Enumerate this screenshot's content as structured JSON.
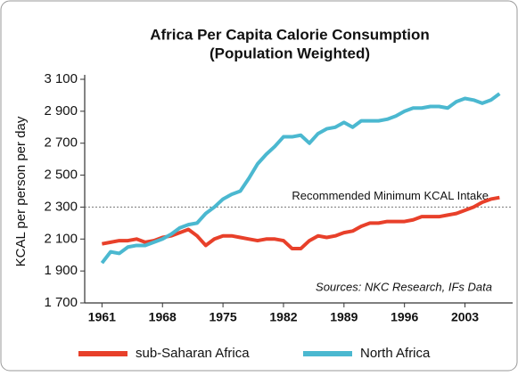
{
  "chart_data": {
    "type": "line",
    "title": [
      "Africa Per Capita Calorie Consumption",
      "(Population Weighted)"
    ],
    "y_label": "KCAL per person per day",
    "x": [
      1961,
      1962,
      1963,
      1964,
      1965,
      1966,
      1967,
      1968,
      1969,
      1970,
      1971,
      1972,
      1973,
      1974,
      1975,
      1976,
      1977,
      1978,
      1979,
      1980,
      1981,
      1982,
      1983,
      1984,
      1985,
      1986,
      1987,
      1988,
      1989,
      1990,
      1991,
      1992,
      1993,
      1994,
      1995,
      1996,
      1997,
      1998,
      1999,
      2000,
      2001,
      2002,
      2003,
      2004,
      2005,
      2006,
      2007
    ],
    "series": [
      {
        "name": "sub-Saharan Africa",
        "color": "#e8402a",
        "values": [
          2070,
          2080,
          2090,
          2090,
          2100,
          2080,
          2090,
          2110,
          2120,
          2140,
          2160,
          2120,
          2060,
          2100,
          2120,
          2120,
          2110,
          2100,
          2090,
          2100,
          2100,
          2090,
          2040,
          2040,
          2090,
          2120,
          2110,
          2120,
          2140,
          2150,
          2180,
          2200,
          2200,
          2210,
          2210,
          2210,
          2220,
          2240,
          2240,
          2240,
          2250,
          2260,
          2280,
          2300,
          2330,
          2350,
          2360
        ]
      },
      {
        "name": "North Africa",
        "color": "#4bb8d0",
        "values": [
          1950,
          2020,
          2010,
          2050,
          2060,
          2060,
          2080,
          2100,
          2130,
          2170,
          2190,
          2200,
          2260,
          2300,
          2350,
          2380,
          2400,
          2480,
          2570,
          2630,
          2680,
          2740,
          2740,
          2750,
          2700,
          2760,
          2790,
          2800,
          2830,
          2800,
          2840,
          2840,
          2840,
          2850,
          2870,
          2900,
          2920,
          2920,
          2930,
          2930,
          2920,
          2960,
          2980,
          2970,
          2950,
          2970,
          3010
        ]
      }
    ],
    "xlim": [
      1959,
      2008
    ],
    "xticks": [
      1961,
      1968,
      1975,
      1982,
      1989,
      1996,
      2003
    ],
    "ylim": [
      1700,
      3100
    ],
    "yticks": [
      {
        "value": 1700,
        "label": "1 700"
      },
      {
        "value": 1900,
        "label": "1 900"
      },
      {
        "value": 2100,
        "label": "2 100"
      },
      {
        "value": 2300,
        "label": "2 300"
      },
      {
        "value": 2500,
        "label": "2 500"
      },
      {
        "value": 2700,
        "label": "2 700"
      },
      {
        "value": 2900,
        "label": "2 900"
      },
      {
        "value": 3100,
        "label": "3 100"
      }
    ],
    "reference_line": {
      "value": 2300,
      "label": "Recommended Minimum KCAL Intake"
    },
    "annotation": "Sources: NKC Research, IFs Data",
    "legend": "bottom"
  }
}
